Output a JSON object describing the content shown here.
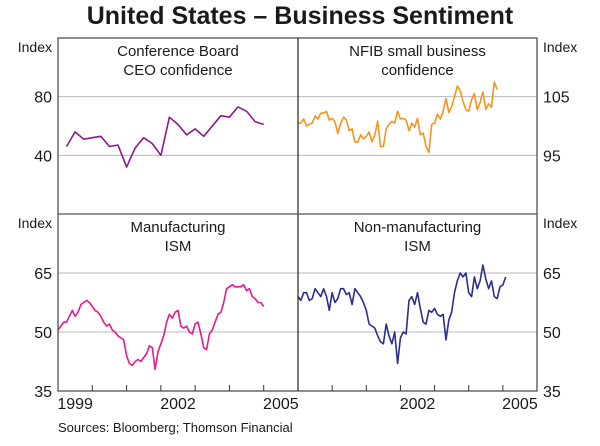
{
  "title": "United States – Business Sentiment",
  "source": "Sources: Bloomberg; Thomson Financial",
  "chart_data": [
    {
      "type": "line",
      "panel": "top-left",
      "title": "Conference Board CEO confidence",
      "title_lines": [
        "Conference Board",
        "CEO confidence"
      ],
      "ylabel": "Index",
      "ylim": [
        0,
        120
      ],
      "yticks": [
        40,
        80
      ],
      "ytick_labels": [
        "40",
        "80"
      ],
      "xlim": [
        1999,
        2006
      ],
      "color": "#8B1A8B",
      "frequency": "quarterly",
      "x_start": 1999.25,
      "values": [
        46,
        56,
        51,
        52,
        53,
        46,
        47,
        32,
        45,
        52,
        48,
        40,
        66,
        61,
        54,
        58,
        53,
        60,
        67,
        66,
        73,
        70,
        63,
        61
      ]
    },
    {
      "type": "line",
      "panel": "top-right",
      "title": "NFIB small business confidence",
      "title_lines": [
        "NFIB small business",
        "confidence"
      ],
      "ylabel": "Index",
      "ylim": [
        85,
        115
      ],
      "yticks": [
        95,
        105
      ],
      "ytick_labels": [
        "95",
        "105"
      ],
      "xlim": [
        1999,
        2006
      ],
      "color": "#F7931E",
      "frequency": "monthly",
      "x_start": 1999.0,
      "values": [
        100.5,
        100.5,
        101.2,
        100,
        100.3,
        100.5,
        101.7,
        101.2,
        102.2,
        102.2,
        102.5,
        101,
        101.3,
        100.7,
        98.7,
        100.5,
        101.5,
        101,
        99.2,
        99.5,
        97.3,
        97.2,
        98.5,
        97.8,
        98.2,
        99,
        97.3,
        98.5,
        100.8,
        96.5,
        96.5,
        99.5,
        100.3,
        100.8,
        100.5,
        102.5,
        101.2,
        101.3,
        101,
        99.2,
        100.5,
        99.8,
        101.3,
        98.5,
        98.8,
        96.5,
        95.5,
        100.3,
        100.5,
        102,
        101.2,
        102.5,
        104.7,
        102.3,
        103.3,
        105,
        106.8,
        106,
        104.2,
        102.8,
        102.5,
        104.5,
        105.5,
        102.8,
        104,
        105.8,
        102.8,
        103.8,
        103.2,
        107.5,
        106.2
      ]
    },
    {
      "type": "line",
      "panel": "bottom-left",
      "title": "Manufacturing ISM",
      "title_lines": [
        "Manufacturing",
        "ISM"
      ],
      "ylabel": "Index",
      "ylim": [
        35,
        80
      ],
      "yticks": [
        35,
        50,
        65
      ],
      "ytick_labels": [
        "35",
        "50",
        "65"
      ],
      "xlim": [
        1999,
        2006
      ],
      "xtick_labels": [
        "1999",
        "2002",
        "2005"
      ],
      "color": "#E6198C",
      "frequency": "monthly",
      "x_start": 1999.0,
      "values": [
        50.5,
        51.5,
        52.5,
        52.5,
        54,
        55.5,
        54,
        55,
        57,
        57.5,
        58,
        57.5,
        56.5,
        55.5,
        55,
        54,
        52.5,
        51.5,
        52,
        50.5,
        50,
        49,
        48.5,
        48,
        44,
        42,
        41.5,
        42.5,
        43,
        42.5,
        43.5,
        44.5,
        46.5,
        46,
        40.5,
        45,
        47,
        49,
        52.5,
        54.5,
        53.5,
        55,
        55.5,
        51.5,
        51,
        51.5,
        50,
        49.5,
        52,
        52.5,
        49.5,
        46,
        45.5,
        49.5,
        50.5,
        52.5,
        54.5,
        55,
        57.5,
        61,
        61.5,
        62,
        61.5,
        61.5,
        61.5,
        62,
        60.5,
        61,
        59,
        58.5,
        57.5,
        57.5,
        56.5
      ]
    },
    {
      "type": "line",
      "panel": "bottom-right",
      "title": "Non-manufacturing ISM",
      "title_lines": [
        "Non-manufacturing",
        "ISM"
      ],
      "ylabel": "Index",
      "ylim": [
        35,
        80
      ],
      "yticks": [
        35,
        50,
        65
      ],
      "ytick_labels": [
        "35",
        "50",
        "65"
      ],
      "xlim": [
        1999,
        2006
      ],
      "xtick_labels": [
        "2002",
        "2005"
      ],
      "color": "#2B2E8C",
      "frequency": "monthly",
      "x_start": 1999.0,
      "values": [
        59,
        58,
        60,
        60,
        58,
        58.5,
        61,
        60,
        59,
        61,
        59,
        55.5,
        60,
        57.5,
        58.5,
        61,
        61,
        59.5,
        60,
        57,
        61,
        60,
        59,
        57.5,
        55.5,
        52,
        51.5,
        51,
        49,
        47.5,
        47,
        52,
        49,
        47,
        50,
        42,
        48.5,
        50,
        49.5,
        58,
        59,
        57,
        60,
        56,
        52.5,
        52,
        55.5,
        55,
        56,
        54.5,
        54,
        54.5,
        48,
        53,
        55,
        60,
        63,
        65,
        64,
        65,
        60,
        59,
        64,
        61,
        63,
        67,
        63.5,
        61,
        63,
        59,
        58.5,
        61.5,
        62,
        64
      ]
    }
  ]
}
